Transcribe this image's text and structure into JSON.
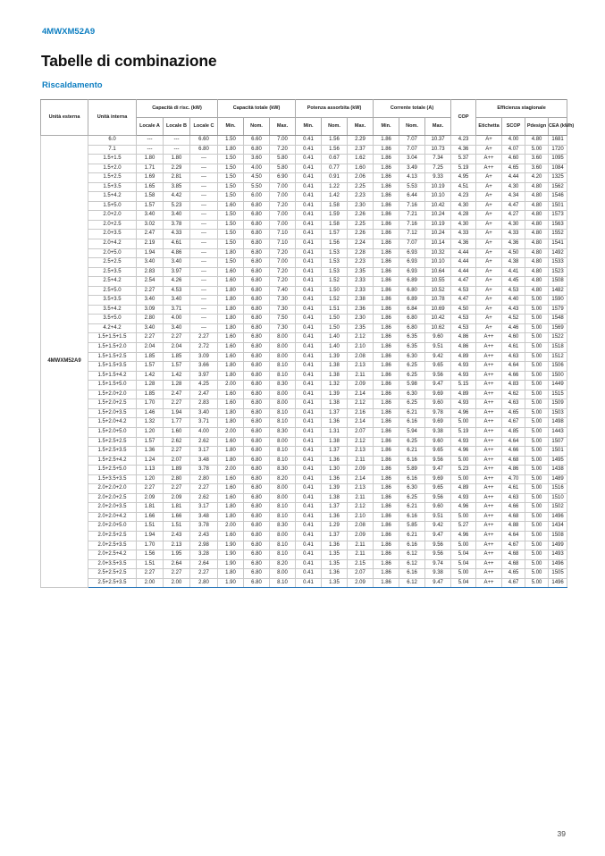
{
  "page": {
    "model": "4MWXM52A9",
    "title": "Tabelle di combinazione",
    "subtitle": "Riscaldamento",
    "page_number": "39"
  },
  "colors": {
    "accent_blue": "#0d7ec1",
    "table_bottom_rule": "#2e79ba",
    "grid_line": "#c9c9c9"
  },
  "table": {
    "external_unit": "4MWXM52A9",
    "groups": [
      {
        "label": "Unità esterna"
      },
      {
        "label": "Unità interna"
      },
      {
        "label": "Capacità di risc. (kW)"
      },
      {
        "label": "Capacità totale (kW)"
      },
      {
        "label": "Potenza assorbita (kW)"
      },
      {
        "label": "Corrente totale (A)"
      },
      {
        "label": "COP"
      },
      {
        "label": "Efficienza stagionale"
      }
    ],
    "sub_headers": [
      "Locale A",
      "Locale B",
      "Locale C",
      "Min.",
      "Nom.",
      "Max.",
      "Min.",
      "Nom.",
      "Max.",
      "Min.",
      "Nom.",
      "Max.",
      "Etichetta",
      "SCOP",
      "Pdesign",
      "CEA (kWh)"
    ],
    "rows": [
      [
        "6.0",
        "---",
        "---",
        "6.60",
        "1.50",
        "6.60",
        "7.00",
        "0.41",
        "1.56",
        "2.29",
        "1.86",
        "7.07",
        "10.37",
        "4.23",
        "A+",
        "4.00",
        "4.80",
        "1681"
      ],
      [
        "7.1",
        "---",
        "---",
        "6.80",
        "1.80",
        "6.80",
        "7.20",
        "0.41",
        "1.56",
        "2.37",
        "1.86",
        "7.07",
        "10.73",
        "4.36",
        "A+",
        "4.07",
        "5.00",
        "1720"
      ],
      [
        "1.5+1.5",
        "1.80",
        "1.80",
        "---",
        "1.50",
        "3.60",
        "5.80",
        "0.41",
        "0.67",
        "1.62",
        "1.86",
        "3.04",
        "7.34",
        "5.37",
        "A++",
        "4.60",
        "3.60",
        "1095"
      ],
      [
        "1.5+2.0",
        "1.71",
        "2.29",
        "---",
        "1.50",
        "4.00",
        "5.80",
        "0.41",
        "0.77",
        "1.60",
        "1.86",
        "3.49",
        "7.25",
        "5.19",
        "A++",
        "4.65",
        "3.60",
        "1084"
      ],
      [
        "1.5+2.5",
        "1.69",
        "2.81",
        "---",
        "1.50",
        "4.50",
        "6.90",
        "0.41",
        "0.91",
        "2.06",
        "1.86",
        "4.13",
        "9.33",
        "4.95",
        "A+",
        "4.44",
        "4.20",
        "1325"
      ],
      [
        "1.5+3.5",
        "1.65",
        "3.85",
        "---",
        "1.50",
        "5.50",
        "7.00",
        "0.41",
        "1.22",
        "2.25",
        "1.86",
        "5.53",
        "10.19",
        "4.51",
        "A+",
        "4.30",
        "4.80",
        "1562"
      ],
      [
        "1.5+4.2",
        "1.58",
        "4.42",
        "---",
        "1.50",
        "6.00",
        "7.00",
        "0.41",
        "1.42",
        "2.23",
        "1.86",
        "6.44",
        "10.10",
        "4.23",
        "A+",
        "4.34",
        "4.80",
        "1546"
      ],
      [
        "1.5+5.0",
        "1.57",
        "5.23",
        "---",
        "1.60",
        "6.80",
        "7.20",
        "0.41",
        "1.58",
        "2.30",
        "1.86",
        "7.16",
        "10.42",
        "4.30",
        "A+",
        "4.47",
        "4.80",
        "1501"
      ],
      [
        "2.0+2.0",
        "3.40",
        "3.40",
        "---",
        "1.50",
        "6.80",
        "7.00",
        "0.41",
        "1.59",
        "2.26",
        "1.86",
        "7.21",
        "10.24",
        "4.28",
        "A+",
        "4.27",
        "4.80",
        "1573"
      ],
      [
        "2.0+2.5",
        "3.02",
        "3.78",
        "---",
        "1.50",
        "6.80",
        "7.00",
        "0.41",
        "1.58",
        "2.25",
        "1.86",
        "7.16",
        "10.19",
        "4.30",
        "A+",
        "4.30",
        "4.80",
        "1563"
      ],
      [
        "2.0+3.5",
        "2.47",
        "4.33",
        "---",
        "1.50",
        "6.80",
        "7.10",
        "0.41",
        "1.57",
        "2.26",
        "1.86",
        "7.12",
        "10.24",
        "4.33",
        "A+",
        "4.33",
        "4.80",
        "1552"
      ],
      [
        "2.0+4.2",
        "2.19",
        "4.61",
        "---",
        "1.50",
        "6.80",
        "7.10",
        "0.41",
        "1.56",
        "2.24",
        "1.86",
        "7.07",
        "10.14",
        "4.36",
        "A+",
        "4.36",
        "4.80",
        "1541"
      ],
      [
        "2.0+5.0",
        "1.94",
        "4.86",
        "---",
        "1.80",
        "6.80",
        "7.20",
        "0.41",
        "1.53",
        "2.28",
        "1.86",
        "6.93",
        "10.32",
        "4.44",
        "A+",
        "4.50",
        "4.80",
        "1492"
      ],
      [
        "2.5+2.5",
        "3.40",
        "3.40",
        "---",
        "1.50",
        "6.80",
        "7.00",
        "0.41",
        "1.53",
        "2.23",
        "1.86",
        "6.93",
        "10.10",
        "4.44",
        "A+",
        "4.38",
        "4.80",
        "1533"
      ],
      [
        "2.5+3.5",
        "2.83",
        "3.97",
        "---",
        "1.60",
        "6.80",
        "7.20",
        "0.41",
        "1.53",
        "2.35",
        "1.86",
        "6.93",
        "10.64",
        "4.44",
        "A+",
        "4.41",
        "4.80",
        "1523"
      ],
      [
        "2.5+4.2",
        "2.54",
        "4.26",
        "---",
        "1.60",
        "6.80",
        "7.20",
        "0.41",
        "1.52",
        "2.33",
        "1.86",
        "6.89",
        "10.55",
        "4.47",
        "A+",
        "4.45",
        "4.80",
        "1508"
      ],
      [
        "2.5+5.0",
        "2.27",
        "4.53",
        "---",
        "1.80",
        "6.80",
        "7.40",
        "0.41",
        "1.50",
        "2.33",
        "1.86",
        "6.80",
        "10.52",
        "4.53",
        "A+",
        "4.53",
        "4.80",
        "1482"
      ],
      [
        "3.5+3.5",
        "3.40",
        "3.40",
        "---",
        "1.80",
        "6.80",
        "7.30",
        "0.41",
        "1.52",
        "2.38",
        "1.86",
        "6.89",
        "10.78",
        "4.47",
        "A+",
        "4.40",
        "5.00",
        "1590"
      ],
      [
        "3.5+4.2",
        "3.09",
        "3.71",
        "---",
        "1.80",
        "6.80",
        "7.30",
        "0.41",
        "1.51",
        "2.36",
        "1.86",
        "6.84",
        "10.69",
        "4.50",
        "A+",
        "4.43",
        "5.00",
        "1579"
      ],
      [
        "3.5+5.0",
        "2.80",
        "4.00",
        "---",
        "1.80",
        "6.80",
        "7.50",
        "0.41",
        "1.50",
        "2.30",
        "1.86",
        "6.80",
        "10.42",
        "4.53",
        "A+",
        "4.52",
        "5.00",
        "1548"
      ],
      [
        "4.2+4.2",
        "3.40",
        "3.40",
        "---",
        "1.80",
        "6.80",
        "7.30",
        "0.41",
        "1.50",
        "2.35",
        "1.86",
        "6.80",
        "10.62",
        "4.53",
        "A+",
        "4.46",
        "5.00",
        "1569"
      ],
      [
        "1.5+1.5+1.5",
        "2.27",
        "2.27",
        "2.27",
        "1.60",
        "6.80",
        "8.00",
        "0.41",
        "1.40",
        "2.12",
        "1.86",
        "6.35",
        "9.60",
        "4.86",
        "A++",
        "4.60",
        "5.00",
        "1522"
      ],
      [
        "1.5+1.5+2.0",
        "2.04",
        "2.04",
        "2.72",
        "1.60",
        "6.80",
        "8.00",
        "0.41",
        "1.40",
        "2.10",
        "1.86",
        "6.35",
        "9.51",
        "4.86",
        "A++",
        "4.61",
        "5.00",
        "1518"
      ],
      [
        "1.5+1.5+2.5",
        "1.85",
        "1.85",
        "3.09",
        "1.60",
        "6.80",
        "8.00",
        "0.41",
        "1.39",
        "2.08",
        "1.86",
        "6.30",
        "9.42",
        "4.89",
        "A++",
        "4.63",
        "5.00",
        "1512"
      ],
      [
        "1.5+1.5+3.5",
        "1.57",
        "1.57",
        "3.66",
        "1.80",
        "6.80",
        "8.10",
        "0.41",
        "1.38",
        "2.13",
        "1.86",
        "6.25",
        "9.65",
        "4.93",
        "A++",
        "4.64",
        "5.00",
        "1506"
      ],
      [
        "1.5+1.5+4.2",
        "1.42",
        "1.42",
        "3.97",
        "1.80",
        "6.80",
        "8.10",
        "0.41",
        "1.38",
        "2.11",
        "1.86",
        "6.25",
        "9.56",
        "4.93",
        "A++",
        "4.66",
        "5.00",
        "1500"
      ],
      [
        "1.5+1.5+5.0",
        "1.28",
        "1.28",
        "4.25",
        "2.00",
        "6.80",
        "8.30",
        "0.41",
        "1.32",
        "2.09",
        "1.86",
        "5.98",
        "9.47",
        "5.15",
        "A++",
        "4.83",
        "5.00",
        "1449"
      ],
      [
        "1.5+2.0+2.0",
        "1.85",
        "2.47",
        "2.47",
        "1.60",
        "6.80",
        "8.00",
        "0.41",
        "1.39",
        "2.14",
        "1.86",
        "6.30",
        "9.69",
        "4.89",
        "A++",
        "4.62",
        "5.00",
        "1515"
      ],
      [
        "1.5+2.0+2.5",
        "1.70",
        "2.27",
        "2.83",
        "1.60",
        "6.80",
        "8.00",
        "0.41",
        "1.38",
        "2.12",
        "1.86",
        "6.25",
        "9.60",
        "4.93",
        "A++",
        "4.63",
        "5.00",
        "1509"
      ],
      [
        "1.5+2.0+3.5",
        "1.46",
        "1.94",
        "3.40",
        "1.80",
        "6.80",
        "8.10",
        "0.41",
        "1.37",
        "2.16",
        "1.86",
        "6.21",
        "9.78",
        "4.96",
        "A++",
        "4.65",
        "5.00",
        "1503"
      ],
      [
        "1.5+2.0+4.2",
        "1.32",
        "1.77",
        "3.71",
        "1.80",
        "6.80",
        "8.10",
        "0.41",
        "1.36",
        "2.14",
        "1.86",
        "6.16",
        "9.69",
        "5.00",
        "A++",
        "4.67",
        "5.00",
        "1498"
      ],
      [
        "1.5+2.0+5.0",
        "1.20",
        "1.60",
        "4.00",
        "2.00",
        "6.80",
        "8.30",
        "0.41",
        "1.31",
        "2.07",
        "1.86",
        "5.94",
        "9.38",
        "5.19",
        "A++",
        "4.85",
        "5.00",
        "1443"
      ],
      [
        "1.5+2.5+2.5",
        "1.57",
        "2.62",
        "2.62",
        "1.60",
        "6.80",
        "8.00",
        "0.41",
        "1.38",
        "2.12",
        "1.86",
        "6.25",
        "9.60",
        "4.93",
        "A++",
        "4.64",
        "5.00",
        "1507"
      ],
      [
        "1.5+2.5+3.5",
        "1.36",
        "2.27",
        "3.17",
        "1.80",
        "6.80",
        "8.10",
        "0.41",
        "1.37",
        "2.13",
        "1.86",
        "6.21",
        "9.65",
        "4.96",
        "A++",
        "4.66",
        "5.00",
        "1501"
      ],
      [
        "1.5+2.5+4.2",
        "1.24",
        "2.07",
        "3.48",
        "1.80",
        "6.80",
        "8.10",
        "0.41",
        "1.36",
        "2.11",
        "1.86",
        "6.16",
        "9.56",
        "5.00",
        "A++",
        "4.68",
        "5.00",
        "1495"
      ],
      [
        "1.5+2.5+5.0",
        "1.13",
        "1.89",
        "3.78",
        "2.00",
        "6.80",
        "8.30",
        "0.41",
        "1.30",
        "2.09",
        "1.86",
        "5.89",
        "9.47",
        "5.23",
        "A++",
        "4.86",
        "5.00",
        "1438"
      ],
      [
        "1.5+3.5+3.5",
        "1.20",
        "2.80",
        "2.80",
        "1.60",
        "6.80",
        "8.20",
        "0.41",
        "1.36",
        "2.14",
        "1.86",
        "6.16",
        "9.69",
        "5.00",
        "A++",
        "4.70",
        "5.00",
        "1489"
      ],
      [
        "2.0+2.0+2.0",
        "2.27",
        "2.27",
        "2.27",
        "1.60",
        "6.80",
        "8.00",
        "0.41",
        "1.39",
        "2.13",
        "1.86",
        "6.30",
        "9.65",
        "4.89",
        "A++",
        "4.61",
        "5.00",
        "1516"
      ],
      [
        "2.0+2.0+2.5",
        "2.09",
        "2.09",
        "2.62",
        "1.60",
        "6.80",
        "8.00",
        "0.41",
        "1.38",
        "2.11",
        "1.86",
        "6.25",
        "9.56",
        "4.93",
        "A++",
        "4.63",
        "5.00",
        "1510"
      ],
      [
        "2.0+2.0+3.5",
        "1.81",
        "1.81",
        "3.17",
        "1.80",
        "6.80",
        "8.10",
        "0.41",
        "1.37",
        "2.12",
        "1.86",
        "6.21",
        "9.60",
        "4.96",
        "A++",
        "4.66",
        "5.00",
        "1502"
      ],
      [
        "2.0+2.0+4.2",
        "1.66",
        "1.66",
        "3.48",
        "1.80",
        "6.80",
        "8.10",
        "0.41",
        "1.36",
        "2.10",
        "1.86",
        "6.16",
        "9.51",
        "5.00",
        "A++",
        "4.68",
        "5.00",
        "1496"
      ],
      [
        "2.0+2.0+5.0",
        "1.51",
        "1.51",
        "3.78",
        "2.00",
        "6.80",
        "8.30",
        "0.41",
        "1.29",
        "2.08",
        "1.86",
        "5.85",
        "9.42",
        "5.27",
        "A++",
        "4.88",
        "5.00",
        "1434"
      ],
      [
        "2.0+2.5+2.5",
        "1.94",
        "2.43",
        "2.43",
        "1.60",
        "6.80",
        "8.00",
        "0.41",
        "1.37",
        "2.09",
        "1.86",
        "6.21",
        "9.47",
        "4.96",
        "A++",
        "4.64",
        "5.00",
        "1508"
      ],
      [
        "2.0+2.5+3.5",
        "1.70",
        "2.13",
        "2.98",
        "1.90",
        "6.80",
        "8.10",
        "0.41",
        "1.36",
        "2.11",
        "1.86",
        "6.16",
        "9.56",
        "5.00",
        "A++",
        "4.67",
        "5.00",
        "1499"
      ],
      [
        "2.0+2.5+4.2",
        "1.56",
        "1.95",
        "3.28",
        "1.90",
        "6.80",
        "8.10",
        "0.41",
        "1.35",
        "2.11",
        "1.86",
        "6.12",
        "9.56",
        "5.04",
        "A++",
        "4.68",
        "5.00",
        "1493"
      ],
      [
        "2.0+3.5+3.5",
        "1.51",
        "2.64",
        "2.64",
        "1.90",
        "6.80",
        "8.20",
        "0.41",
        "1.35",
        "2.15",
        "1.86",
        "6.12",
        "9.74",
        "5.04",
        "A++",
        "4.68",
        "5.00",
        "1496"
      ],
      [
        "2.5+2.5+2.5",
        "2.27",
        "2.27",
        "2.27",
        "1.80",
        "6.80",
        "8.00",
        "0.41",
        "1.36",
        "2.07",
        "1.86",
        "6.16",
        "9.38",
        "5.00",
        "A++",
        "4.65",
        "5.00",
        "1505"
      ],
      [
        "2.5+2.5+3.5",
        "2.00",
        "2.00",
        "2.80",
        "1.90",
        "6.80",
        "8.10",
        "0.41",
        "1.35",
        "2.09",
        "1.86",
        "6.12",
        "9.47",
        "5.04",
        "A++",
        "4.67",
        "5.00",
        "1496"
      ]
    ]
  }
}
